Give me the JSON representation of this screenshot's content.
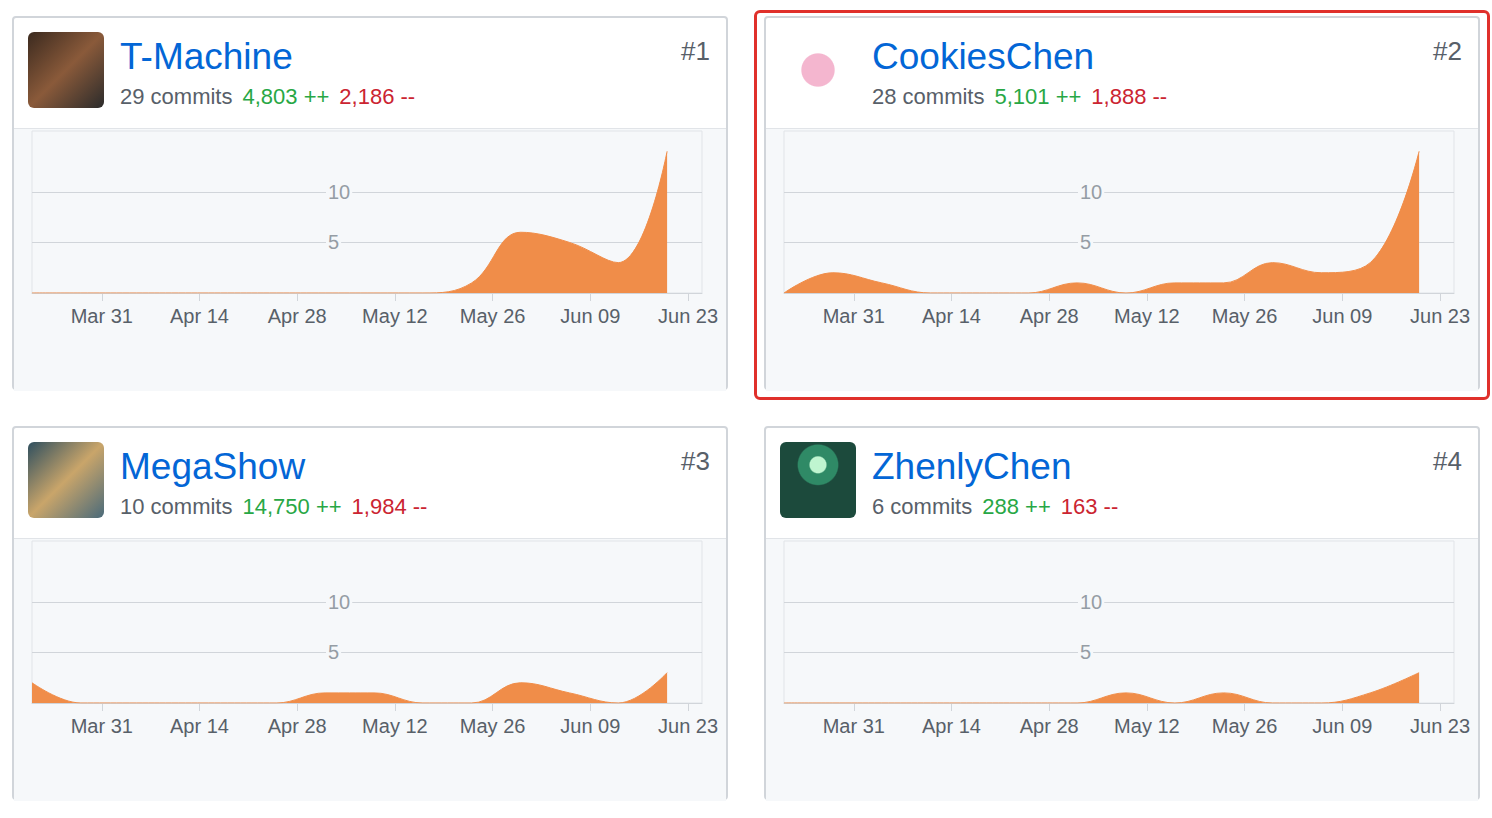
{
  "chart_data": [
    {
      "type": "area",
      "title": "T-Machine",
      "rank": "#1",
      "commits": "29 commits",
      "additions": "4,803 ++",
      "deletions": "2,186 --",
      "x": [
        80,
        87,
        94,
        101,
        108,
        115,
        122,
        129,
        136,
        143,
        150,
        157,
        164,
        171
      ],
      "values": [
        0,
        0,
        0,
        0,
        0,
        0,
        0,
        0,
        0,
        1,
        6,
        5,
        3,
        14
      ],
      "color": "#f08d49",
      "xlim": [
        80,
        176
      ],
      "xticks": [
        {
          "value": 90,
          "label": "Mar 31"
        },
        {
          "value": 104,
          "label": "Apr 14"
        },
        {
          "value": 118,
          "label": "Apr 28"
        },
        {
          "value": 132,
          "label": "May 12"
        },
        {
          "value": 146,
          "label": "May 26"
        },
        {
          "value": 160,
          "label": "Jun 09"
        },
        {
          "value": 174,
          "label": "Jun 23"
        }
      ],
      "ylim": [
        0,
        16
      ],
      "yticks": [
        5,
        10
      ],
      "grid": true
    },
    {
      "type": "area",
      "title": "CookiesChen",
      "rank": "#2",
      "commits": "28 commits",
      "additions": "5,101 ++",
      "deletions": "1,888 --",
      "x": [
        80,
        87,
        94,
        101,
        108,
        115,
        122,
        129,
        136,
        143,
        150,
        157,
        164,
        171
      ],
      "values": [
        0,
        2,
        1,
        0,
        0,
        0,
        1,
        0,
        1,
        1,
        3,
        2,
        3,
        14
      ],
      "color": "#f08d49",
      "xlim": [
        80,
        176
      ],
      "xticks": [
        {
          "value": 90,
          "label": "Mar 31"
        },
        {
          "value": 104,
          "label": "Apr 14"
        },
        {
          "value": 118,
          "label": "Apr 28"
        },
        {
          "value": 132,
          "label": "May 12"
        },
        {
          "value": 146,
          "label": "May 26"
        },
        {
          "value": 160,
          "label": "Jun 09"
        },
        {
          "value": 174,
          "label": "Jun 23"
        }
      ],
      "ylim": [
        0,
        16
      ],
      "yticks": [
        5,
        10
      ],
      "grid": true
    },
    {
      "type": "area",
      "title": "MegaShow",
      "rank": "#3",
      "commits": "10 commits",
      "additions": "14,750 ++",
      "deletions": "1,984 --",
      "x": [
        80,
        87,
        94,
        101,
        108,
        115,
        122,
        129,
        136,
        143,
        150,
        157,
        164,
        171
      ],
      "values": [
        2,
        0,
        0,
        0,
        0,
        0,
        1,
        1,
        0,
        0,
        2,
        1,
        0,
        3
      ],
      "color": "#f08d49",
      "xlim": [
        80,
        176
      ],
      "xticks": [
        {
          "value": 90,
          "label": "Mar 31"
        },
        {
          "value": 104,
          "label": "Apr 14"
        },
        {
          "value": 118,
          "label": "Apr 28"
        },
        {
          "value": 132,
          "label": "May 12"
        },
        {
          "value": 146,
          "label": "May 26"
        },
        {
          "value": 160,
          "label": "Jun 09"
        },
        {
          "value": 174,
          "label": "Jun 23"
        }
      ],
      "ylim": [
        0,
        16
      ],
      "yticks": [
        5,
        10
      ],
      "grid": true
    },
    {
      "type": "area",
      "title": "ZhenlyChen",
      "rank": "#4",
      "commits": "6 commits",
      "additions": "288 ++",
      "deletions": "163 --",
      "x": [
        80,
        87,
        94,
        101,
        108,
        115,
        122,
        129,
        136,
        143,
        150,
        157,
        164,
        171
      ],
      "values": [
        0,
        0,
        0,
        0,
        0,
        0,
        0,
        1,
        0,
        1,
        0,
        0,
        1,
        3
      ],
      "color": "#f08d49",
      "xlim": [
        80,
        176
      ],
      "xticks": [
        {
          "value": 90,
          "label": "Mar 31"
        },
        {
          "value": 104,
          "label": "Apr 14"
        },
        {
          "value": 118,
          "label": "Apr 28"
        },
        {
          "value": 132,
          "label": "May 12"
        },
        {
          "value": 146,
          "label": "May 26"
        },
        {
          "value": 160,
          "label": "Jun 09"
        },
        {
          "value": 174,
          "label": "Jun 23"
        }
      ],
      "ylim": [
        0,
        16
      ],
      "yticks": [
        5,
        10
      ],
      "grid": true
    }
  ]
}
